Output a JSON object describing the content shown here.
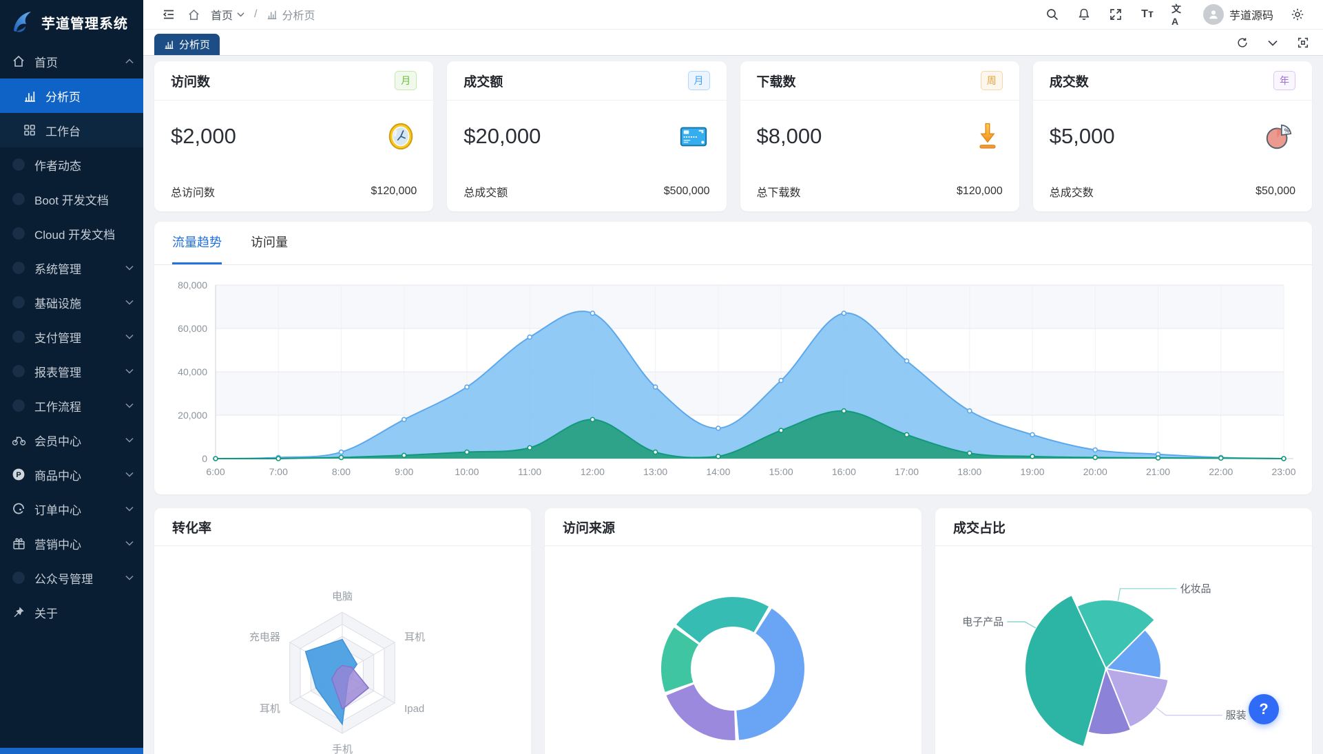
{
  "app": {
    "logo_text": "芋道管理系统"
  },
  "sidebar": {
    "items": [
      {
        "label": "首页",
        "icon": "home-icon",
        "level": 1,
        "chevron": "up",
        "active": false
      },
      {
        "label": "分析页",
        "icon": "bar-chart-icon",
        "level": 2,
        "active": true
      },
      {
        "label": "工作台",
        "icon": "grid-icon",
        "level": 2,
        "active": false
      },
      {
        "label": "作者动态",
        "icon": "dot-icon",
        "level": 1
      },
      {
        "label": "Boot 开发文档",
        "icon": "dot-icon",
        "level": 1
      },
      {
        "label": "Cloud 开发文档",
        "icon": "dot-icon",
        "level": 1
      },
      {
        "label": "系统管理",
        "icon": "dot-icon",
        "level": 1,
        "chevron": "down"
      },
      {
        "label": "基础设施",
        "icon": "dot-icon",
        "level": 1,
        "chevron": "down"
      },
      {
        "label": "支付管理",
        "icon": "dot-icon",
        "level": 1,
        "chevron": "down"
      },
      {
        "label": "报表管理",
        "icon": "dot-icon",
        "level": 1,
        "chevron": "down"
      },
      {
        "label": "工作流程",
        "icon": "dot-icon",
        "level": 1,
        "chevron": "down"
      },
      {
        "label": "会员中心",
        "icon": "member-icon",
        "level": 1,
        "chevron": "down"
      },
      {
        "label": "商品中心",
        "icon": "product-icon",
        "level": 1,
        "chevron": "down"
      },
      {
        "label": "订单中心",
        "icon": "order-icon",
        "level": 1,
        "chevron": "down"
      },
      {
        "label": "营销中心",
        "icon": "gift-icon",
        "level": 1,
        "chevron": "down"
      },
      {
        "label": "公众号管理",
        "icon": "dot-icon",
        "level": 1,
        "chevron": "down"
      },
      {
        "label": "关于",
        "icon": "pin-icon",
        "level": 1
      }
    ]
  },
  "header": {
    "breadcrumb": {
      "home": "首页",
      "current": "分析页"
    },
    "user_name": "芋道源码",
    "icons": [
      "collapse-icon",
      "home-icon",
      "search-icon",
      "bell-icon",
      "fullscreen-icon",
      "font-size-icon",
      "translate-icon",
      "gear-icon"
    ],
    "font_size_glyph": "Tт",
    "translate_glyph": "文A"
  },
  "tabbar": {
    "active_tab": "分析页",
    "actions": [
      "refresh-icon",
      "chevron-down-icon",
      "maximize-icon"
    ]
  },
  "stats": {
    "cards": [
      {
        "title": "访问数",
        "badge": "月",
        "badge_color": "green",
        "value": "$2,000",
        "footer_label": "总访问数",
        "footer_value": "$120,000",
        "icon": "clock-icon"
      },
      {
        "title": "成交额",
        "badge": "月",
        "badge_color": "blue",
        "value": "$20,000",
        "footer_label": "总成交额",
        "footer_value": "$500,000",
        "icon": "bank-card-icon"
      },
      {
        "title": "下载数",
        "badge": "周",
        "badge_color": "orange",
        "value": "$8,000",
        "footer_label": "总下载数",
        "footer_value": "$120,000",
        "icon": "download-icon"
      },
      {
        "title": "成交数",
        "badge": "年",
        "badge_color": "purple",
        "value": "$5,000",
        "footer_label": "总成交数",
        "footer_value": "$50,000",
        "icon": "pie-icon"
      }
    ]
  },
  "trend": {
    "tabs": [
      "流量趋势",
      "访问量"
    ],
    "active_tab": "流量趋势"
  },
  "sections": {
    "conversion": "转化率",
    "source": "访问来源",
    "deal": "成交占比"
  },
  "help": {
    "label": "?"
  },
  "chart_data": [
    {
      "id": "traffic-trend",
      "type": "area",
      "title": "流量趋势",
      "x": [
        "6:00",
        "7:00",
        "8:00",
        "9:00",
        "10:00",
        "11:00",
        "12:00",
        "13:00",
        "14:00",
        "15:00",
        "16:00",
        "17:00",
        "18:00",
        "19:00",
        "20:00",
        "21:00",
        "22:00",
        "23:00"
      ],
      "ylim": [
        0,
        80000
      ],
      "yticks": [
        0,
        20000,
        40000,
        60000,
        80000
      ],
      "grid": true,
      "legend_position": "none",
      "series": [
        {
          "name": "blue",
          "color": "#5da8ec",
          "fill": "rgba(126,194,243,0.85)",
          "values": [
            0,
            500,
            3000,
            18000,
            33000,
            56000,
            67000,
            33000,
            14000,
            36000,
            67000,
            45000,
            22000,
            11000,
            4000,
            2000,
            500,
            0
          ]
        },
        {
          "name": "green",
          "color": "#11997b",
          "fill": "rgba(38,160,128,0.92)",
          "values": [
            0,
            0,
            500,
            1500,
            3000,
            5000,
            18000,
            3000,
            1000,
            13000,
            22000,
            11000,
            2500,
            1000,
            500,
            300,
            200,
            0
          ]
        }
      ]
    },
    {
      "id": "conversion-radar",
      "type": "radar",
      "title": "转化率",
      "indicators": [
        "电脑",
        "耳机",
        "Ipad",
        "手机",
        "耳机",
        "充电器"
      ],
      "max": 100,
      "levels": 5,
      "series": [
        {
          "name": "blue",
          "stroke": "#3d92d8",
          "fill": "rgba(75,159,227,0.95)",
          "values": [
            55,
            28,
            12,
            85,
            50,
            70
          ]
        },
        {
          "name": "purple",
          "stroke": "#8670cd",
          "fill": "rgba(151,131,213,0.8)",
          "values": [
            12,
            18,
            50,
            60,
            20,
            10
          ]
        }
      ]
    },
    {
      "id": "visit-source",
      "type": "pie",
      "title": "访问来源",
      "donut": true,
      "inner_ratio": 0.59,
      "segments": [
        {
          "color": "#36bcb3",
          "start": -52,
          "end": 30,
          "value": 23
        },
        {
          "color": "#6aa4f4",
          "start": 33,
          "end": 175,
          "value": 40
        },
        {
          "color": "#9a89dd",
          "start": 178,
          "end": 248,
          "value": 19
        },
        {
          "color": "#40c5a2",
          "start": 251,
          "end": 305,
          "value": 15
        }
      ]
    },
    {
      "id": "deal-share",
      "type": "pie",
      "title": "成交占比",
      "rose": true,
      "slices": [
        {
          "label": "电子产品",
          "color": "#2cb4a4",
          "start": 196,
          "end": 335,
          "r": 118,
          "label_angle": 300,
          "label_side": "left"
        },
        {
          "label": "化妆品",
          "color": "#3cc3b1",
          "start": 335,
          "end": 405,
          "r": 100,
          "label_angle": 10,
          "label_side": "right"
        },
        {
          "label": "",
          "color": "#69a5f5",
          "start": 45,
          "end": 100,
          "r": 80
        },
        {
          "label": "服装",
          "color": "#b7a9e8",
          "start": 100,
          "end": 158,
          "r": 92,
          "label_angle": 128,
          "label_side": "right"
        },
        {
          "label": "",
          "color": "#8c83d9",
          "start": 158,
          "end": 196,
          "r": 96
        }
      ]
    }
  ]
}
